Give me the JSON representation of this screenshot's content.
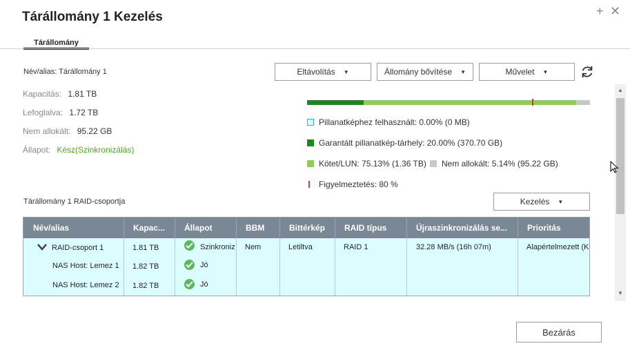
{
  "window": {
    "title": "Tárállomány 1 Kezelés",
    "plus_label": "+",
    "close_label": "✕"
  },
  "tabs": [
    {
      "label": "Tárállomány"
    }
  ],
  "pool": {
    "name_line": "Név/alias: Tárállomány 1",
    "capacity_label": "Kapacitás:",
    "capacity_value": "1.81 TB",
    "allocated_label": "Lefoglalva:",
    "allocated_value": "1.72 TB",
    "unallocated_label": "Nem allokált:",
    "unallocated_value": "95.22 GB",
    "status_label": "Állapot:",
    "status_value": "Kész(Szinkronizálás)"
  },
  "toolbar": {
    "remove_label": "Eltávolítás",
    "expand_label": "Állomány bővítése",
    "action_label": "Művelet"
  },
  "usage": {
    "colors": {
      "snapshot": "#e0fbfb",
      "guaranteed": "#1a8a1a",
      "volume": "#8cd14b",
      "unallocated": "#c8c8c8",
      "warning": "#e53333"
    },
    "snapshot_used": "Pillanatképhez felhasznált: 0.00% (0 MB)",
    "guaranteed_snapshot": "Garantált pillanatkép-tárhely: 20.00% (370.70 GB)",
    "volume_lun": "Kötet/LUN: 75.13% (1.36 TB)",
    "unallocated": "Nem allokált: 5.14% (95.22 GB)",
    "warning": "Figyelmeztetés: 80 %"
  },
  "raid": {
    "title": "Tárállomány 1 RAID-csoportja",
    "manage_label": "Kezelés",
    "columns": [
      "Név/alias",
      "Kapac...",
      "Állapot",
      "BBM",
      "Bittérkép",
      "RAID típus",
      "Újraszinkronizálás se...",
      "Prioritás"
    ],
    "group": {
      "name": "RAID-csoport 1",
      "capacity": "1.81 TB",
      "status": "Szinkronizálás",
      "bbm": "Nem",
      "bitmap": "Letiltva",
      "raid_type": "RAID 1",
      "resync": "32.28 MB/s (16h 07m)",
      "priority": "Alapértelmezett (Közepes)"
    },
    "disks": [
      {
        "name": "NAS Host: Lemez 1",
        "capacity": "1.82 TB",
        "status": "Jó"
      },
      {
        "name": "NAS Host: Lemez 2",
        "capacity": "1.82 TB",
        "status": "Jó"
      }
    ]
  },
  "footer": {
    "close_label": "Bezárás"
  }
}
